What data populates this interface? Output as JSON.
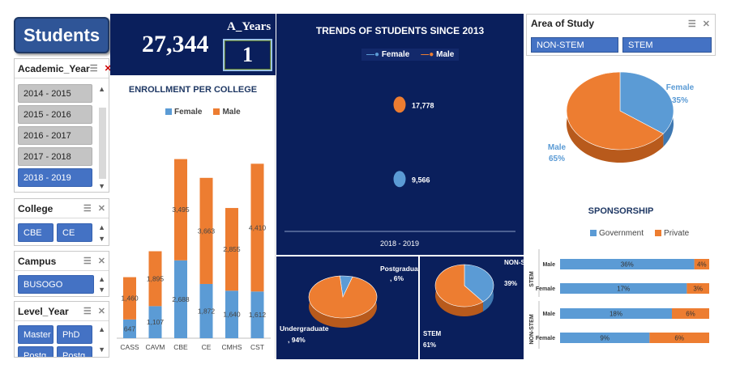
{
  "app_title": "Students",
  "kpi": {
    "total": "27,344",
    "years_label": "A_Years",
    "years_value": "1"
  },
  "slicers": {
    "academic_year": {
      "title": "Academic_Year",
      "items": [
        {
          "label": "2014 - 2015",
          "selected": false
        },
        {
          "label": "2015 - 2016",
          "selected": false
        },
        {
          "label": "2016 - 2017",
          "selected": false
        },
        {
          "label": "2017 - 2018",
          "selected": false
        },
        {
          "label": "2018 - 2019",
          "selected": true
        }
      ]
    },
    "college": {
      "title": "College",
      "items": [
        {
          "label": "CBE"
        },
        {
          "label": "CE"
        }
      ]
    },
    "campus": {
      "title": "Campus",
      "items": [
        {
          "label": "BUSOGO"
        }
      ]
    },
    "level_year": {
      "title": "Level_Year",
      "items": [
        {
          "label": "Master"
        },
        {
          "label": "PhD"
        },
        {
          "label": "Postg"
        },
        {
          "label": "Postg"
        }
      ]
    }
  },
  "area_of_study": {
    "title": "Area of Study",
    "items": [
      {
        "label": "NON-STEM"
      },
      {
        "label": "STEM"
      }
    ]
  },
  "colors": {
    "female": "#5b9bd5",
    "male": "#ed7d31",
    "navy": "#0a1f5c",
    "slicer_blue": "#4472c4"
  },
  "chart_data": [
    {
      "id": "enrollment",
      "type": "bar",
      "title": "ENROLLMENT PER COLLEGE",
      "categories": [
        "CASS",
        "CAVM",
        "CBE",
        "CE",
        "CMHS",
        "CST"
      ],
      "series": [
        {
          "name": "Female",
          "values": [
            647,
            1107,
            2688,
            1872,
            1640,
            1612
          ]
        },
        {
          "name": "Male",
          "values": [
            1460,
            1895,
            3495,
            3663,
            2855,
            4410
          ]
        }
      ],
      "value_labels": {
        "Female": [
          "647",
          "1,107",
          "2,688",
          "1,872",
          "1,640",
          "1,612"
        ],
        "Male": [
          "1,460",
          "1,895",
          "3,495",
          "3,663",
          "2,855",
          "4,410"
        ]
      },
      "stacked": true
    },
    {
      "id": "trends",
      "type": "scatter",
      "title": "TRENDS OF STUDENTS SINCE 2013",
      "x": [
        "2018 - 2019"
      ],
      "series": [
        {
          "name": "Female",
          "values": [
            9566
          ],
          "label": "9,566"
        },
        {
          "name": "Male",
          "values": [
            17778
          ],
          "label": "17,778"
        }
      ]
    },
    {
      "id": "level_pie",
      "type": "pie",
      "slices": [
        {
          "label": "Postgraduate, 6%",
          "value": 6
        },
        {
          "label": "Undergraduate, 94%",
          "value": 94
        }
      ]
    },
    {
      "id": "stem_pie",
      "type": "pie",
      "slices": [
        {
          "label": "NON-STEM, 39%",
          "value": 39
        },
        {
          "label": "STEM, 61%",
          "value": 61
        }
      ]
    },
    {
      "id": "gender_pie",
      "type": "pie",
      "slices": [
        {
          "label": "Female",
          "pct": "35%",
          "value": 35
        },
        {
          "label": "Male",
          "pct": "65%",
          "value": 65
        }
      ]
    },
    {
      "id": "sponsorship",
      "type": "bar",
      "title": "SPONSORSHIP",
      "series_names": [
        "Government",
        "Private"
      ],
      "groups": [
        {
          "group": "STEM",
          "rows": [
            {
              "label": "Male",
              "government": 36,
              "private": 4
            },
            {
              "label": "Female",
              "government": 17,
              "private": 3
            }
          ]
        },
        {
          "group": "NON-STEM",
          "rows": [
            {
              "label": "Male",
              "government": 18,
              "private": 6
            },
            {
              "label": "Female",
              "government": 9,
              "private": 6
            }
          ]
        }
      ]
    }
  ]
}
